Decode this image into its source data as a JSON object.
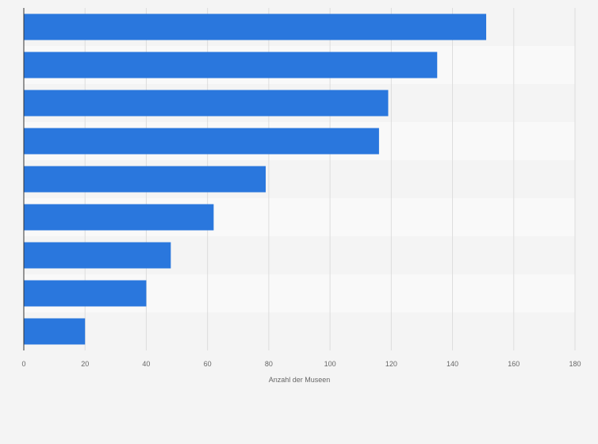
{
  "chart_data": {
    "type": "bar",
    "orientation": "horizontal",
    "categories": [
      "",
      "",
      "",
      "",
      "",
      "",
      "",
      "",
      ""
    ],
    "values": [
      151,
      135,
      119,
      116,
      79,
      62,
      48,
      40,
      20
    ],
    "xlabel": "Anzahl der Museen",
    "xlim": [
      0,
      180
    ],
    "xticks": [
      0,
      20,
      40,
      60,
      80,
      100,
      120,
      140,
      160,
      180
    ],
    "grid": true,
    "legend": "none",
    "colors": {
      "bar": "#2a77dd",
      "band_dark": "#f4f4f4",
      "band_light": "#f9f9f9",
      "grid": "#dddddd",
      "axis": "#333333",
      "text": "#666666"
    }
  }
}
